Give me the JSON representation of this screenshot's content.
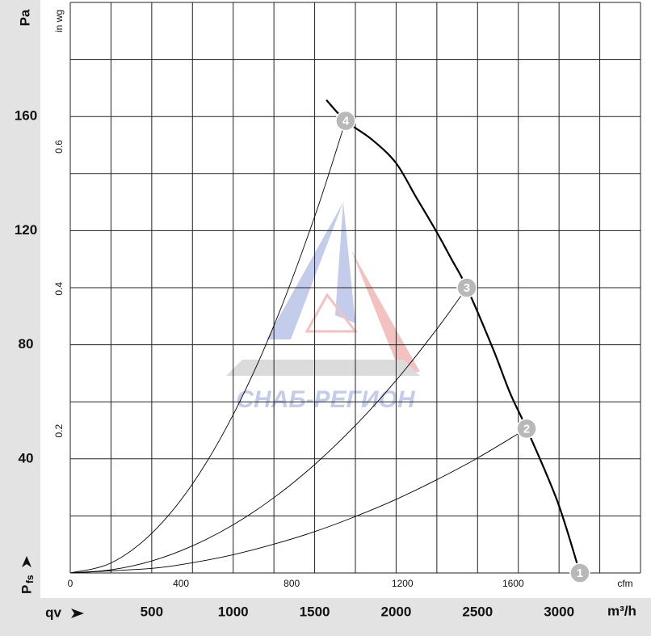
{
  "chart_data": {
    "type": "line",
    "y_label": "Pa",
    "y_symbol": "P",
    "y_symbol_sub": "fs",
    "x_label": "qv",
    "x_unit": "m³/h",
    "x2_unit": "cfm",
    "y2_unit": "in wg",
    "watermark": "СНАБ-РЕГИОН",
    "xlim": [
      0,
      3500
    ],
    "ylim": [
      0,
      200
    ],
    "xticks": [
      500,
      1000,
      1500,
      2000,
      2500,
      3000
    ],
    "yticks": [
      40,
      80,
      120,
      160
    ],
    "x2lim": [
      0,
      2060
    ],
    "x2ticks": [
      0,
      400,
      800,
      1200,
      1600
    ],
    "y2lim": [
      0,
      0.803
    ],
    "y2ticks": [
      0.2,
      0.4,
      0.6
    ],
    "xgrid": [
      0,
      250,
      500,
      750,
      1000,
      1250,
      1500,
      1750,
      2000,
      2250,
      2500,
      2750,
      3000,
      3250,
      3500
    ],
    "ygrid": [
      0,
      20,
      40,
      60,
      80,
      100,
      120,
      140,
      160,
      180,
      200
    ],
    "series": [
      {
        "color": "#000000",
        "width": 2.2,
        "x": [
          1572,
          1690,
          1850,
          1998,
          2120,
          2246,
          2340,
          2434,
          2593,
          2700,
          2801,
          2990,
          3128
        ],
        "values": [
          165.8,
          158.5,
          152,
          143.8,
          132,
          119.8,
          110,
          100,
          78.8,
          63,
          50.6,
          25.1,
          0
        ]
      },
      {
        "color": "#000000",
        "width": 0.9,
        "x": [
          0,
          250,
          500,
          750,
          1000,
          1250,
          1500,
          1690
        ],
        "values": [
          0,
          3.5,
          13.9,
          31.2,
          55.5,
          86.7,
          124.9,
          158.5
        ]
      },
      {
        "color": "#000000",
        "width": 0.9,
        "x": [
          0,
          250,
          500,
          750,
          1000,
          1250,
          1500,
          1750,
          2000,
          2250,
          2434
        ],
        "values": [
          0,
          1.1,
          4.2,
          9.5,
          16.9,
          26.4,
          38.0,
          51.7,
          67.5,
          85.5,
          100
        ]
      },
      {
        "color": "#000000",
        "width": 0.9,
        "x": [
          0,
          500,
          750,
          1000,
          1250,
          1500,
          1750,
          2000,
          2250,
          2500,
          2801
        ],
        "values": [
          0,
          1.6,
          3.6,
          6.4,
          10.1,
          14.5,
          19.8,
          25.8,
          32.7,
          40.3,
          50.6
        ]
      }
    ],
    "points": [
      {
        "label": "1",
        "x": 3128,
        "y": 0
      },
      {
        "label": "2",
        "x": 2801,
        "y": 50.6
      },
      {
        "label": "3",
        "x": 2434,
        "y": 100
      },
      {
        "label": "4",
        "x": 1690,
        "y": 158.5
      }
    ]
  }
}
